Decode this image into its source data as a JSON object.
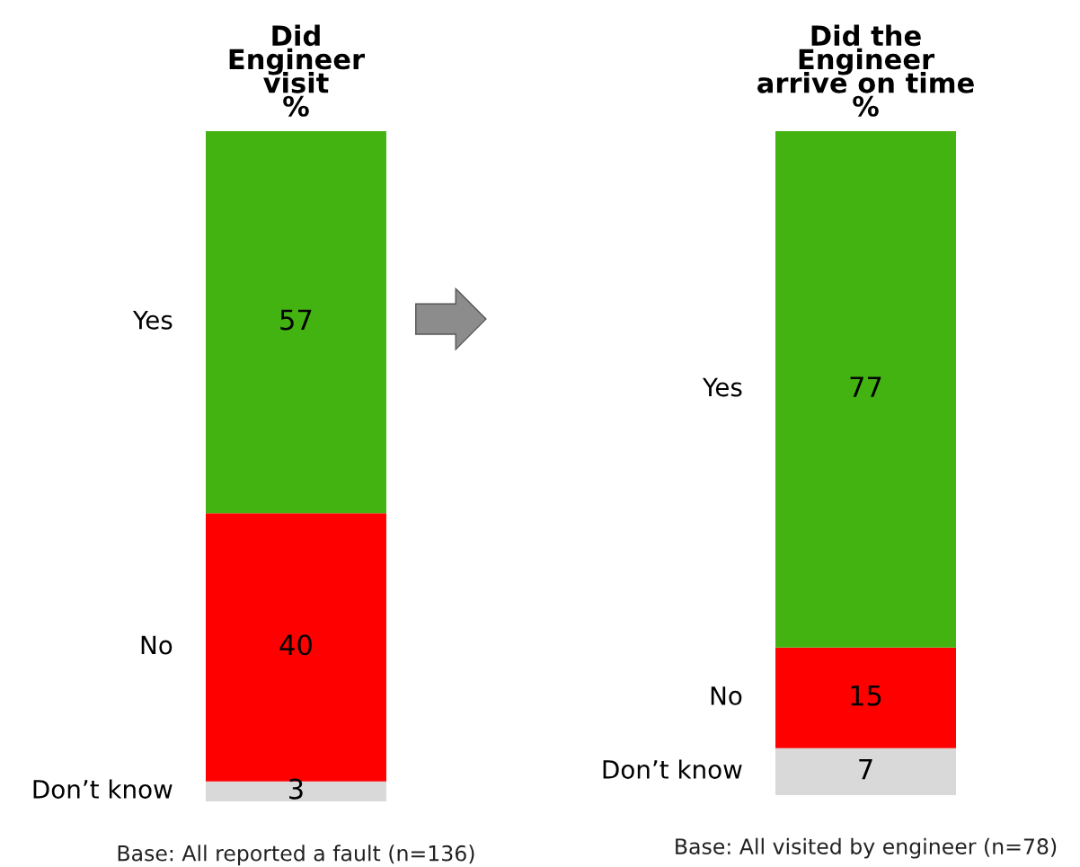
{
  "chart_data": [
    {
      "type": "bar",
      "title": "Did\nEngineer\nvisit\n%",
      "categories": [
        null
      ],
      "stacked": true,
      "data_labels": true,
      "tick_labels": false,
      "series": [
        {
          "name": "Don’t know",
          "color": "#d9d9d9",
          "values": [
            3
          ]
        },
        {
          "name": "No",
          "color": "#ff0000",
          "values": [
            40
          ]
        },
        {
          "name": "Yes",
          "color": "#43b311",
          "values": [
            57
          ]
        }
      ],
      "annotations": [
        "Base: All reported a fault (n=136)"
      ]
    },
    {
      "type": "bar",
      "title": "Did the\nEngineer\narrive on time\n%",
      "categories": [
        null
      ],
      "stacked": true,
      "data_labels": true,
      "tick_labels": false,
      "series": [
        {
          "name": "Don’t know",
          "color": "#d9d9d9",
          "values": [
            7
          ]
        },
        {
          "name": "No",
          "color": "#ff0000",
          "values": [
            15
          ]
        },
        {
          "name": "Yes",
          "color": "#43b311",
          "values": [
            77
          ]
        }
      ],
      "annotations": [
        "Base: All visited by engineer (n=78)"
      ]
    }
  ]
}
